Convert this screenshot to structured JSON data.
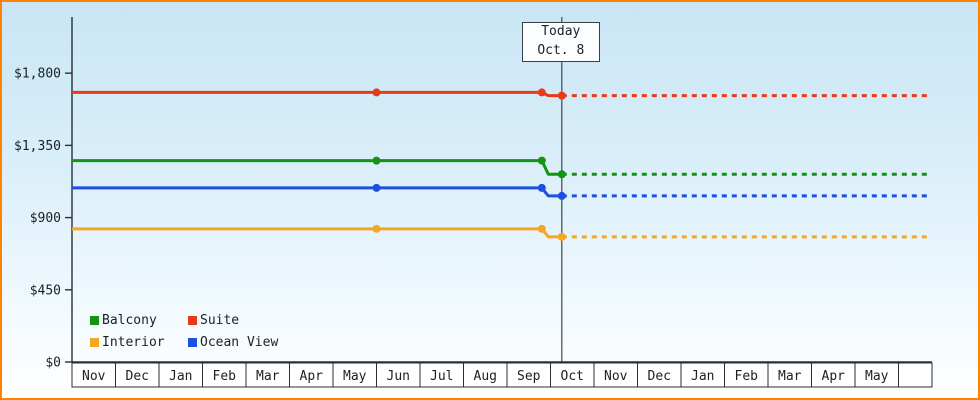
{
  "theme": {
    "frame_border": "#ff8200",
    "axis_color": "#2a2f35",
    "text_color": "#1b2026",
    "month_cell_bg": "#ffffff",
    "today_line_color": "#3f454b"
  },
  "chart_data": {
    "type": "line",
    "y_axis": {
      "min": 0,
      "max": 2150,
      "ticks": [
        {
          "value": 0,
          "label": "$0"
        },
        {
          "value": 450,
          "label": "$450"
        },
        {
          "value": 900,
          "label": "$900"
        },
        {
          "value": 1350,
          "label": "$1,350"
        },
        {
          "value": 1800,
          "label": "$1,800"
        }
      ]
    },
    "x_axis": {
      "month_labels": [
        "Nov",
        "Dec",
        "Jan",
        "Feb",
        "Mar",
        "Apr",
        "May",
        "Jun",
        "Jul",
        "Aug",
        "Sep",
        "Oct",
        "Nov",
        "Dec",
        "Jan",
        "Feb",
        "Mar",
        "Apr",
        "May"
      ]
    },
    "today": {
      "label_line1": "Today",
      "label_line2": "Oct. 8",
      "month_index": 11,
      "month_fraction": 0.26
    },
    "series": [
      {
        "name": "Balcony",
        "color": "#149414",
        "solid": [
          [
            0,
            1255
          ],
          [
            7.0,
            1255
          ],
          [
            10.8,
            1255
          ],
          [
            10.95,
            1170
          ],
          [
            11.26,
            1170
          ]
        ],
        "dashed": [
          [
            11.26,
            1170
          ],
          [
            19.7,
            1170
          ]
        ],
        "markers": [
          [
            7.0,
            1255
          ],
          [
            10.8,
            1255
          ],
          [
            11.26,
            1170
          ]
        ]
      },
      {
        "name": "Suite",
        "color": "#e93a16",
        "solid": [
          [
            0,
            1680
          ],
          [
            7.0,
            1680
          ],
          [
            10.8,
            1680
          ],
          [
            10.95,
            1660
          ],
          [
            11.26,
            1660
          ]
        ],
        "dashed": [
          [
            11.26,
            1660
          ],
          [
            19.7,
            1660
          ]
        ],
        "markers": [
          [
            7.0,
            1680
          ],
          [
            10.8,
            1680
          ],
          [
            11.26,
            1660
          ]
        ]
      },
      {
        "name": "Interior",
        "color": "#f5a623",
        "solid": [
          [
            0,
            830
          ],
          [
            7.0,
            830
          ],
          [
            10.8,
            830
          ],
          [
            10.95,
            780
          ],
          [
            11.26,
            780
          ]
        ],
        "dashed": [
          [
            11.26,
            780
          ],
          [
            19.7,
            780
          ]
        ],
        "markers": [
          [
            7.0,
            830
          ],
          [
            10.8,
            830
          ],
          [
            11.26,
            780
          ]
        ]
      },
      {
        "name": "Ocean View",
        "color": "#1d50e0",
        "solid": [
          [
            0,
            1085
          ],
          [
            7.0,
            1085
          ],
          [
            10.8,
            1085
          ],
          [
            10.95,
            1035
          ],
          [
            11.26,
            1035
          ]
        ],
        "dashed": [
          [
            11.26,
            1035
          ],
          [
            19.7,
            1035
          ]
        ],
        "markers": [
          [
            7.0,
            1085
          ],
          [
            10.8,
            1085
          ],
          [
            11.26,
            1035
          ]
        ]
      }
    ],
    "legend": {
      "items": [
        {
          "label": "Balcony",
          "color": "#149414"
        },
        {
          "label": "Suite",
          "color": "#e93a16"
        },
        {
          "label": "Interior",
          "color": "#f5a623"
        },
        {
          "label": "Ocean View",
          "color": "#1d50e0"
        }
      ]
    }
  }
}
